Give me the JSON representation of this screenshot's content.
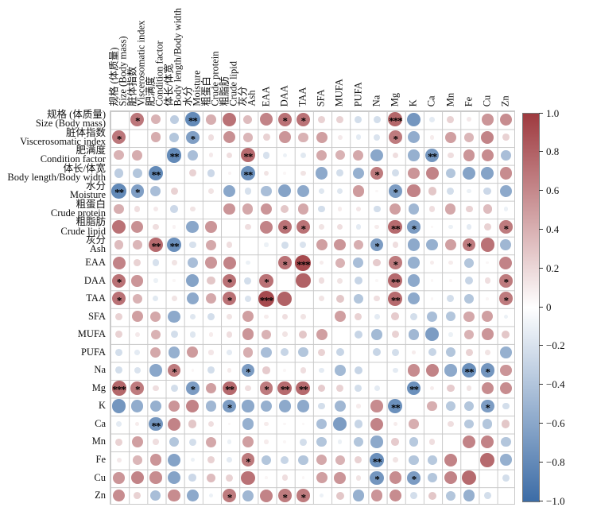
{
  "chart_data": {
    "type": "heatmap",
    "subtype": "correlation-matrix",
    "title": "",
    "variables": [
      {
        "zh": "规格 (体质量)",
        "en": "Size (Body mass)"
      },
      {
        "zh": "脏体指数",
        "en": "Viscerosomatic index"
      },
      {
        "zh": "肥满度",
        "en": "Condition factor"
      },
      {
        "zh": "体长/体宽",
        "en": "Body length/Body width"
      },
      {
        "zh": "水分",
        "en": "Moisture"
      },
      {
        "zh": "粗蛋白",
        "en": "Crude protein"
      },
      {
        "zh": "粗脂肪",
        "en": "Crude lipid"
      },
      {
        "zh": "灰分",
        "en": "Ash"
      },
      {
        "en": "EAA"
      },
      {
        "en": "DAA"
      },
      {
        "en": "TAA"
      },
      {
        "en": "SFA"
      },
      {
        "en": "MUFA"
      },
      {
        "en": "PUFA"
      },
      {
        "en": "Na"
      },
      {
        "en": "Mg"
      },
      {
        "en": "K"
      },
      {
        "en": "Ca"
      },
      {
        "en": "Mn"
      },
      {
        "en": "Fe"
      },
      {
        "en": "Cu"
      },
      {
        "en": "Zn"
      }
    ],
    "pairs": [
      [
        0,
        1,
        0.62,
        "*"
      ],
      [
        0,
        2,
        0.3,
        ""
      ],
      [
        0,
        3,
        -0.25,
        ""
      ],
      [
        0,
        4,
        -0.75,
        "**"
      ],
      [
        0,
        5,
        0.32,
        ""
      ],
      [
        0,
        6,
        0.65,
        ""
      ],
      [
        0,
        7,
        0.25,
        ""
      ],
      [
        0,
        8,
        0.55,
        ""
      ],
      [
        0,
        9,
        0.65,
        "*"
      ],
      [
        0,
        10,
        0.65,
        "*"
      ],
      [
        0,
        11,
        0.15,
        ""
      ],
      [
        0,
        12,
        0.15,
        ""
      ],
      [
        0,
        13,
        -0.15,
        ""
      ],
      [
        0,
        14,
        -0.15,
        ""
      ],
      [
        0,
        15,
        0.72,
        "***"
      ],
      [
        0,
        16,
        -0.65,
        ""
      ],
      [
        0,
        17,
        -0.08,
        ""
      ],
      [
        0,
        18,
        0.15,
        ""
      ],
      [
        0,
        19,
        0.06,
        ""
      ],
      [
        0,
        20,
        0.45,
        ""
      ],
      [
        0,
        21,
        0.5,
        ""
      ],
      [
        1,
        2,
        0.33,
        ""
      ],
      [
        1,
        3,
        -0.3,
        ""
      ],
      [
        1,
        4,
        -0.58,
        "*"
      ],
      [
        1,
        5,
        0.1,
        ""
      ],
      [
        1,
        6,
        0.48,
        ""
      ],
      [
        1,
        7,
        0.28,
        ""
      ],
      [
        1,
        8,
        0.15,
        ""
      ],
      [
        1,
        9,
        0.45,
        ""
      ],
      [
        1,
        10,
        0.3,
        ""
      ],
      [
        1,
        11,
        0.4,
        ""
      ],
      [
        1,
        12,
        0.06,
        ""
      ],
      [
        1,
        13,
        -0.08,
        ""
      ],
      [
        1,
        14,
        -0.12,
        ""
      ],
      [
        1,
        15,
        0.6,
        "*"
      ],
      [
        1,
        16,
        -0.48,
        ""
      ],
      [
        1,
        17,
        0.05,
        ""
      ],
      [
        1,
        18,
        0.4,
        ""
      ],
      [
        1,
        19,
        0.28,
        ""
      ],
      [
        1,
        20,
        0.55,
        ""
      ],
      [
        1,
        21,
        0.15,
        ""
      ],
      [
        2,
        3,
        -0.75,
        "**"
      ],
      [
        2,
        4,
        -0.35,
        ""
      ],
      [
        2,
        5,
        0.06,
        ""
      ],
      [
        2,
        6,
        0.1,
        ""
      ],
      [
        2,
        7,
        0.7,
        "**"
      ],
      [
        2,
        8,
        -0.13,
        ""
      ],
      [
        2,
        9,
        -0.05,
        ""
      ],
      [
        2,
        10,
        -0.09,
        ""
      ],
      [
        2,
        11,
        0.35,
        ""
      ],
      [
        2,
        12,
        0.3,
        ""
      ],
      [
        2,
        13,
        0.35,
        ""
      ],
      [
        2,
        14,
        -0.52,
        ""
      ],
      [
        2,
        15,
        0.1,
        ""
      ],
      [
        2,
        16,
        -0.45,
        ""
      ],
      [
        2,
        17,
        -0.65,
        "**"
      ],
      [
        2,
        18,
        0.1,
        ""
      ],
      [
        2,
        19,
        0.45,
        ""
      ],
      [
        2,
        20,
        0.5,
        ""
      ],
      [
        2,
        21,
        -0.35,
        ""
      ],
      [
        3,
        4,
        0.15,
        ""
      ],
      [
        3,
        5,
        -0.18,
        ""
      ],
      [
        3,
        6,
        0.03,
        ""
      ],
      [
        3,
        7,
        -0.7,
        "**"
      ],
      [
        3,
        8,
        0.08,
        ""
      ],
      [
        3,
        9,
        0.02,
        ""
      ],
      [
        3,
        10,
        0.08,
        ""
      ],
      [
        3,
        11,
        -0.5,
        ""
      ],
      [
        3,
        12,
        -0.15,
        ""
      ],
      [
        3,
        13,
        -0.45,
        ""
      ],
      [
        3,
        14,
        0.6,
        "*"
      ],
      [
        3,
        15,
        -0.15,
        ""
      ],
      [
        3,
        16,
        0.45,
        ""
      ],
      [
        3,
        17,
        0.55,
        ""
      ],
      [
        3,
        18,
        -0.3,
        ""
      ],
      [
        3,
        19,
        -0.55,
        ""
      ],
      [
        3,
        20,
        -0.55,
        ""
      ],
      [
        3,
        21,
        0.5,
        ""
      ],
      [
        4,
        5,
        0.08,
        ""
      ],
      [
        4,
        6,
        -0.52,
        ""
      ],
      [
        4,
        7,
        -0.13,
        ""
      ],
      [
        4,
        8,
        -0.35,
        ""
      ],
      [
        4,
        9,
        -0.55,
        ""
      ],
      [
        4,
        10,
        -0.5,
        ""
      ],
      [
        4,
        11,
        -0.1,
        ""
      ],
      [
        4,
        12,
        -0.1,
        ""
      ],
      [
        4,
        13,
        0.42,
        ""
      ],
      [
        4,
        14,
        0.02,
        ""
      ],
      [
        4,
        15,
        -0.6,
        "*"
      ],
      [
        4,
        16,
        0.55,
        ""
      ],
      [
        4,
        17,
        0.2,
        ""
      ],
      [
        4,
        18,
        -0.15,
        ""
      ],
      [
        4,
        19,
        -0.05,
        ""
      ],
      [
        4,
        20,
        -0.18,
        ""
      ],
      [
        4,
        21,
        -0.5,
        ""
      ],
      [
        5,
        6,
        0.45,
        ""
      ],
      [
        5,
        7,
        0.35,
        ""
      ],
      [
        5,
        8,
        0.45,
        ""
      ],
      [
        5,
        9,
        0.2,
        ""
      ],
      [
        5,
        10,
        0.35,
        ""
      ],
      [
        5,
        11,
        -0.15,
        ""
      ],
      [
        5,
        12,
        0.05,
        ""
      ],
      [
        5,
        13,
        0.07,
        ""
      ],
      [
        5,
        14,
        -0.15,
        ""
      ],
      [
        5,
        15,
        0.4,
        ""
      ],
      [
        5,
        16,
        -0.4,
        ""
      ],
      [
        5,
        17,
        0.1,
        ""
      ],
      [
        5,
        18,
        0.35,
        ""
      ],
      [
        5,
        19,
        0.15,
        ""
      ],
      [
        5,
        20,
        0.25,
        ""
      ],
      [
        5,
        21,
        -0.05,
        ""
      ],
      [
        6,
        7,
        0.1,
        ""
      ],
      [
        6,
        8,
        0.55,
        ""
      ],
      [
        6,
        9,
        0.65,
        "*"
      ],
      [
        6,
        10,
        0.65,
        "*"
      ],
      [
        6,
        11,
        0.08,
        ""
      ],
      [
        6,
        12,
        0.1,
        ""
      ],
      [
        6,
        13,
        -0.08,
        ""
      ],
      [
        6,
        14,
        0.05,
        ""
      ],
      [
        6,
        15,
        0.7,
        "**"
      ],
      [
        6,
        16,
        -0.6,
        "*"
      ],
      [
        6,
        17,
        0.02,
        ""
      ],
      [
        6,
        18,
        -0.05,
        ""
      ],
      [
        6,
        19,
        -0.08,
        ""
      ],
      [
        6,
        20,
        0.15,
        ""
      ],
      [
        6,
        21,
        0.6,
        "*"
      ],
      [
        7,
        8,
        -0.05,
        ""
      ],
      [
        7,
        9,
        -0.15,
        ""
      ],
      [
        7,
        10,
        -0.12,
        ""
      ],
      [
        7,
        11,
        0.4,
        ""
      ],
      [
        7,
        12,
        0.45,
        ""
      ],
      [
        7,
        13,
        0.32,
        ""
      ],
      [
        7,
        14,
        -0.6,
        "*"
      ],
      [
        7,
        15,
        0.1,
        ""
      ],
      [
        7,
        16,
        -0.5,
        ""
      ],
      [
        7,
        17,
        -0.45,
        ""
      ],
      [
        7,
        18,
        0.4,
        ""
      ],
      [
        7,
        19,
        0.6,
        "*"
      ],
      [
        7,
        20,
        0.65,
        ""
      ],
      [
        7,
        21,
        -0.4,
        ""
      ],
      [
        8,
        9,
        0.65,
        "*"
      ],
      [
        8,
        10,
        0.9,
        "***"
      ],
      [
        8,
        11,
        0.05,
        ""
      ],
      [
        8,
        12,
        0.3,
        ""
      ],
      [
        8,
        13,
        -0.35,
        ""
      ],
      [
        8,
        14,
        0.18,
        ""
      ],
      [
        8,
        15,
        0.6,
        "*"
      ],
      [
        8,
        16,
        -0.45,
        ""
      ],
      [
        8,
        17,
        0.05,
        ""
      ],
      [
        8,
        18,
        0.05,
        ""
      ],
      [
        8,
        19,
        -0.3,
        ""
      ],
      [
        8,
        20,
        0.02,
        ""
      ],
      [
        8,
        21,
        0.55,
        ""
      ],
      [
        9,
        10,
        0.75,
        ""
      ],
      [
        9,
        11,
        0.1,
        ""
      ],
      [
        9,
        12,
        0.08,
        ""
      ],
      [
        9,
        13,
        -0.2,
        ""
      ],
      [
        9,
        14,
        0.02,
        ""
      ],
      [
        9,
        15,
        0.7,
        "**"
      ],
      [
        9,
        16,
        -0.5,
        ""
      ],
      [
        9,
        17,
        0.02,
        ""
      ],
      [
        9,
        18,
        0.02,
        ""
      ],
      [
        9,
        19,
        -0.2,
        ""
      ],
      [
        9,
        20,
        0.1,
        ""
      ],
      [
        9,
        21,
        0.6,
        "*"
      ],
      [
        10,
        11,
        0.08,
        ""
      ],
      [
        10,
        12,
        0.2,
        ""
      ],
      [
        10,
        13,
        -0.3,
        ""
      ],
      [
        10,
        14,
        0.1,
        ""
      ],
      [
        10,
        15,
        0.7,
        "**"
      ],
      [
        10,
        16,
        -0.5,
        ""
      ],
      [
        10,
        17,
        0.02,
        ""
      ],
      [
        10,
        18,
        -0.15,
        ""
      ],
      [
        10,
        19,
        -0.3,
        ""
      ],
      [
        10,
        20,
        0.02,
        ""
      ],
      [
        10,
        21,
        0.6,
        "*"
      ],
      [
        11,
        12,
        0.4,
        ""
      ],
      [
        11,
        13,
        0.15,
        ""
      ],
      [
        11,
        14,
        -0.08,
        ""
      ],
      [
        11,
        15,
        0.18,
        ""
      ],
      [
        11,
        16,
        -0.15,
        ""
      ],
      [
        11,
        17,
        -0.35,
        ""
      ],
      [
        11,
        18,
        -0.3,
        ""
      ],
      [
        11,
        19,
        0.35,
        ""
      ],
      [
        11,
        20,
        0.4,
        ""
      ],
      [
        11,
        21,
        -0.05,
        ""
      ],
      [
        12,
        13,
        -0.2,
        ""
      ],
      [
        12,
        14,
        -0.38,
        ""
      ],
      [
        12,
        15,
        0.15,
        ""
      ],
      [
        12,
        16,
        -0.4,
        ""
      ],
      [
        12,
        17,
        -0.6,
        ""
      ],
      [
        12,
        18,
        -0.05,
        ""
      ],
      [
        12,
        19,
        0.3,
        ""
      ],
      [
        12,
        20,
        0.45,
        ""
      ],
      [
        12,
        21,
        0.2,
        ""
      ],
      [
        13,
        14,
        -0.2,
        ""
      ],
      [
        13,
        15,
        -0.15,
        ""
      ],
      [
        13,
        16,
        0.05,
        ""
      ],
      [
        13,
        17,
        -0.2,
        ""
      ],
      [
        13,
        18,
        -0.3,
        ""
      ],
      [
        13,
        19,
        0.15,
        ""
      ],
      [
        13,
        20,
        0.08,
        ""
      ],
      [
        13,
        21,
        -0.45,
        ""
      ],
      [
        14,
        15,
        -0.08,
        ""
      ],
      [
        14,
        16,
        0.5,
        ""
      ],
      [
        14,
        17,
        0.55,
        ""
      ],
      [
        14,
        18,
        -0.5,
        ""
      ],
      [
        14,
        19,
        -0.7,
        "**"
      ],
      [
        14,
        20,
        -0.65,
        "*"
      ],
      [
        14,
        21,
        0.45,
        ""
      ],
      [
        15,
        16,
        -0.7,
        "**"
      ],
      [
        15,
        17,
        0.05,
        ""
      ],
      [
        15,
        18,
        0.18,
        ""
      ],
      [
        15,
        19,
        0.08,
        ""
      ],
      [
        15,
        20,
        0.5,
        ""
      ],
      [
        15,
        21,
        0.5,
        ""
      ],
      [
        16,
        17,
        0.32,
        ""
      ],
      [
        16,
        18,
        -0.28,
        ""
      ],
      [
        16,
        19,
        -0.3,
        ""
      ],
      [
        16,
        20,
        -0.6,
        "*"
      ],
      [
        16,
        21,
        -0.15,
        ""
      ],
      [
        17,
        18,
        0.1,
        ""
      ],
      [
        17,
        19,
        -0.28,
        ""
      ],
      [
        17,
        20,
        -0.3,
        ""
      ],
      [
        17,
        21,
        0.2,
        ""
      ],
      [
        18,
        19,
        0.55,
        ""
      ],
      [
        18,
        20,
        0.55,
        ""
      ],
      [
        18,
        21,
        -0.3,
        ""
      ],
      [
        19,
        20,
        0.7,
        ""
      ],
      [
        19,
        21,
        -0.45,
        ""
      ],
      [
        20,
        21,
        -0.15,
        ""
      ]
    ],
    "colorbar": {
      "ticks": [
        "1.0",
        "0.8",
        "0.6",
        "0.4",
        "0.2",
        "0",
        "−0.2",
        "−0.4",
        "−0.6",
        "−0.8",
        "−1.0"
      ],
      "positive_color": "#9E3A3F",
      "negative_color": "#3C6CA6",
      "zero_color": "#FFFFFF"
    },
    "grid_color": "#C9C9C9",
    "significance_color": "#000000",
    "legend_position": "right",
    "xlabel": "",
    "ylabel": ""
  }
}
